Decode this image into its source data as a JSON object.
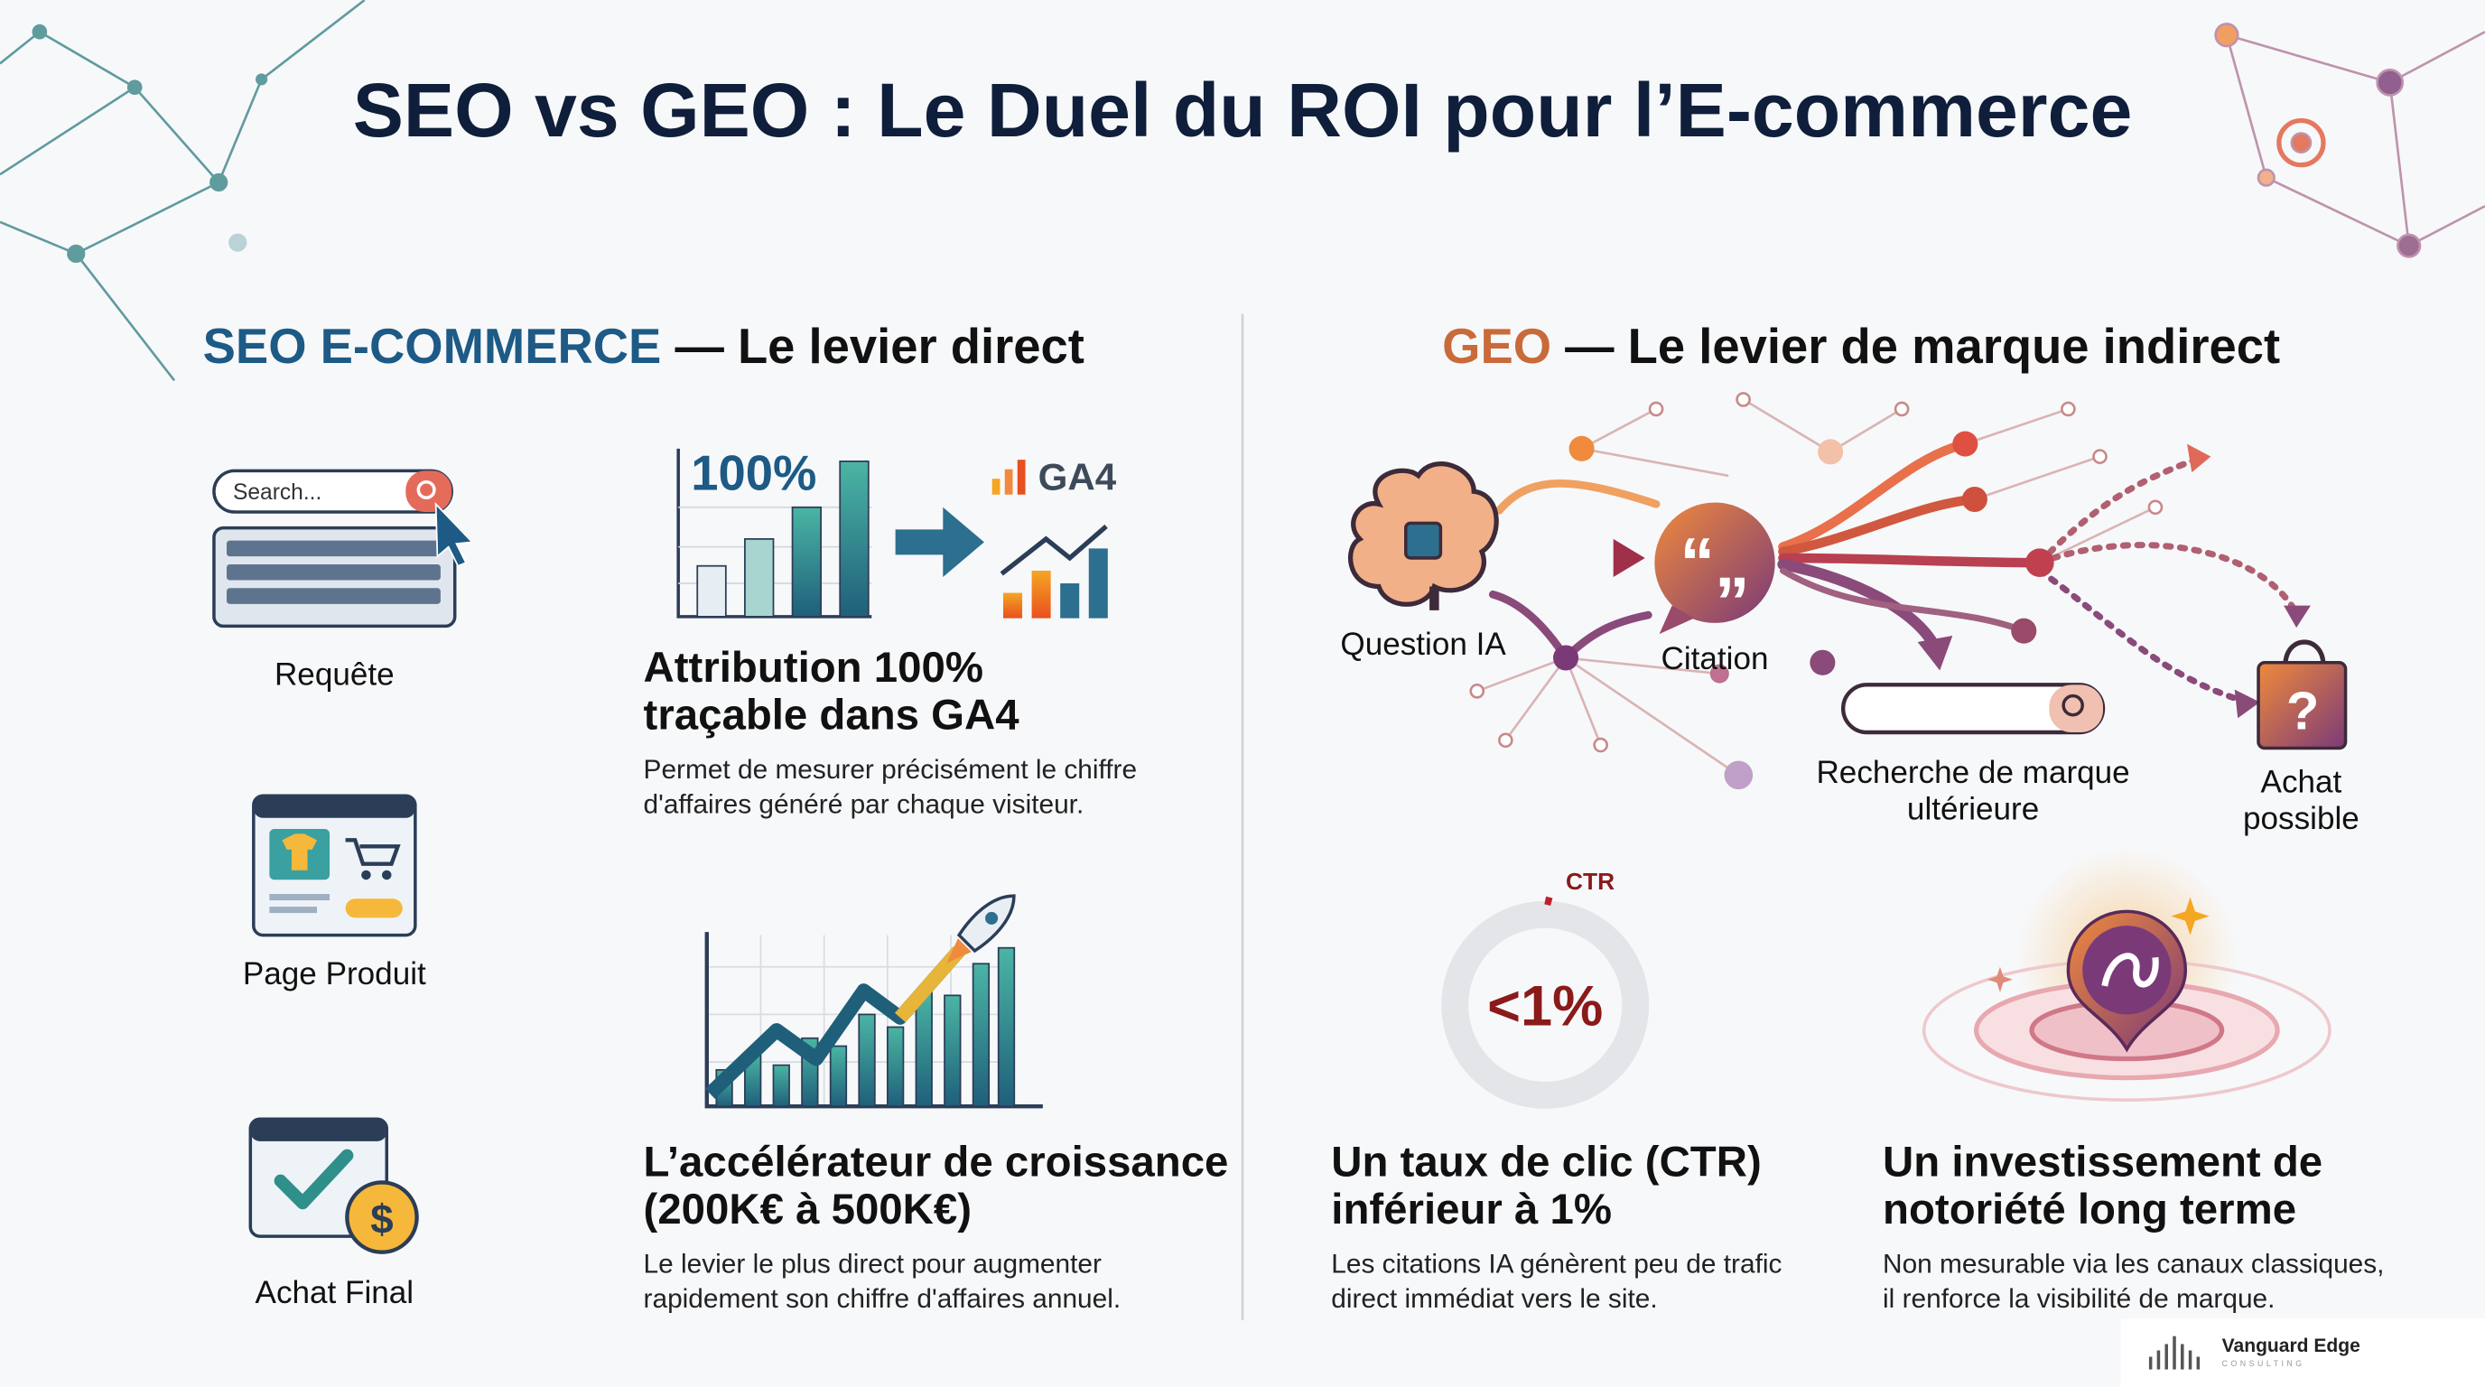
{
  "title": "SEO vs GEO : Le Duel du ROI pour l’E-commerce",
  "seo": {
    "label": "SEO E-COMMERCE",
    "heading": " — Le levier direct",
    "search_placeholder": "Search...",
    "steps": [
      "Requête",
      "Page Produit",
      "Achat Final"
    ],
    "chart_label": "100%",
    "ga4_label": "GA4",
    "cards": [
      {
        "title": [
          "Attribution 100%",
          "traçable dans GA4"
        ],
        "text": [
          "Permet de mesurer précisément le chiffre",
          "d'affaires généré par chaque visiteur."
        ]
      },
      {
        "title": [
          "L’accélérateur de croissance",
          "(200K€ à 500K€)"
        ],
        "text": [
          "Le levier le plus direct pour augmenter",
          "rapidement son chiffre d'affaires annuel."
        ]
      }
    ]
  },
  "geo": {
    "label": "GEO",
    "heading": " — Le levier de marque indirect",
    "nodes": {
      "question": "Question IA",
      "citation": "Citation",
      "search": [
        "Recherche de marque",
        "ultérieure"
      ],
      "purchase": [
        "Achat",
        "possible"
      ]
    },
    "ctr_label": "CTR",
    "ctr_value": "<1%",
    "cards": [
      {
        "title": [
          "Un taux de clic (CTR)",
          "inférieur à 1%"
        ],
        "text": [
          "Les citations IA génèrent peu de trafic",
          "direct immédiat vers le site."
        ]
      },
      {
        "title": [
          "Un investissement de",
          "notoriété long terme"
        ],
        "text": [
          "Non mesurable via les canaux classiques,",
          "il renforce la visibilité de marque."
        ]
      }
    ]
  },
  "footer": {
    "brand": "Vanguard Edge",
    "tagline": "CONSULTING"
  }
}
